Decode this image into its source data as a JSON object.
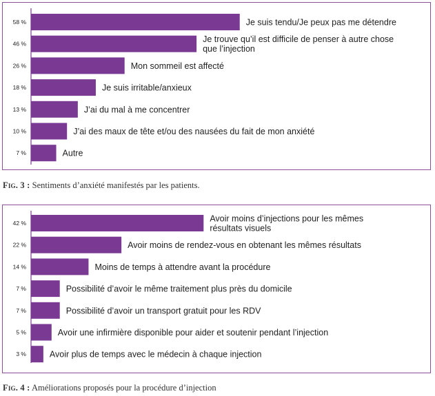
{
  "figures": [
    {
      "caption_label": "Fig. 3 :",
      "caption_text": " Sentiments d’anxiété manifestés par les patients."
    },
    {
      "caption_label": "Fig. 4 :",
      "caption_text": " Améliorations proposés pour la procédure d’injection"
    }
  ],
  "colors": {
    "bar": "#7a3a94",
    "axis": "#7a3a94",
    "border": "#8a4d98",
    "text": "#222222"
  },
  "chart_data": [
    {
      "type": "bar",
      "orientation": "horizontal",
      "unit": "%",
      "xlim": [
        0,
        100
      ],
      "categories": [
        [
          "Je suis tendu/Je peux pas me détendre"
        ],
        [
          "Je trouve qu’il est difficile de penser à autre chose",
          "que l’injection"
        ],
        [
          "Mon sommeil est affecté"
        ],
        [
          "Je suis irritable/anxieux"
        ],
        [
          "J’ai du mal à me concentrer"
        ],
        [
          "J’ai des maux de tête et/ou des nausées du fait de mon anxiété"
        ],
        [
          "Autre"
        ]
      ],
      "values": [
        58,
        46,
        26,
        18,
        13,
        10,
        7
      ],
      "value_labels": [
        "58 %",
        "46 %",
        "26 %",
        "18 %",
        "13 %",
        "10 %",
        "7 %"
      ]
    },
    {
      "type": "bar",
      "orientation": "horizontal",
      "unit": "%",
      "xlim": [
        0,
        100
      ],
      "categories": [
        [
          "Avoir moins d’injections pour les mêmes",
          "résultats visuels"
        ],
        [
          "Avoir moins de rendez-vous en obtenant les mêmes résultats"
        ],
        [
          "Moins de temps à attendre avant la procédure"
        ],
        [
          "Possibilité d’avoir le même traitement plus près du domicile"
        ],
        [
          "Possibilité d’avoir un transport gratuit pour les RDV"
        ],
        [
          "Avoir une infirmière disponible pour aider et soutenir pendant l’injection"
        ],
        [
          "Avoir plus de temps avec le médecin à chaque injection"
        ]
      ],
      "values": [
        42,
        22,
        14,
        7,
        7,
        5,
        3
      ],
      "value_labels": [
        "42 %",
        "22 %",
        "14 %",
        "7 %",
        "7 %",
        "5 %",
        "3 %"
      ]
    }
  ]
}
